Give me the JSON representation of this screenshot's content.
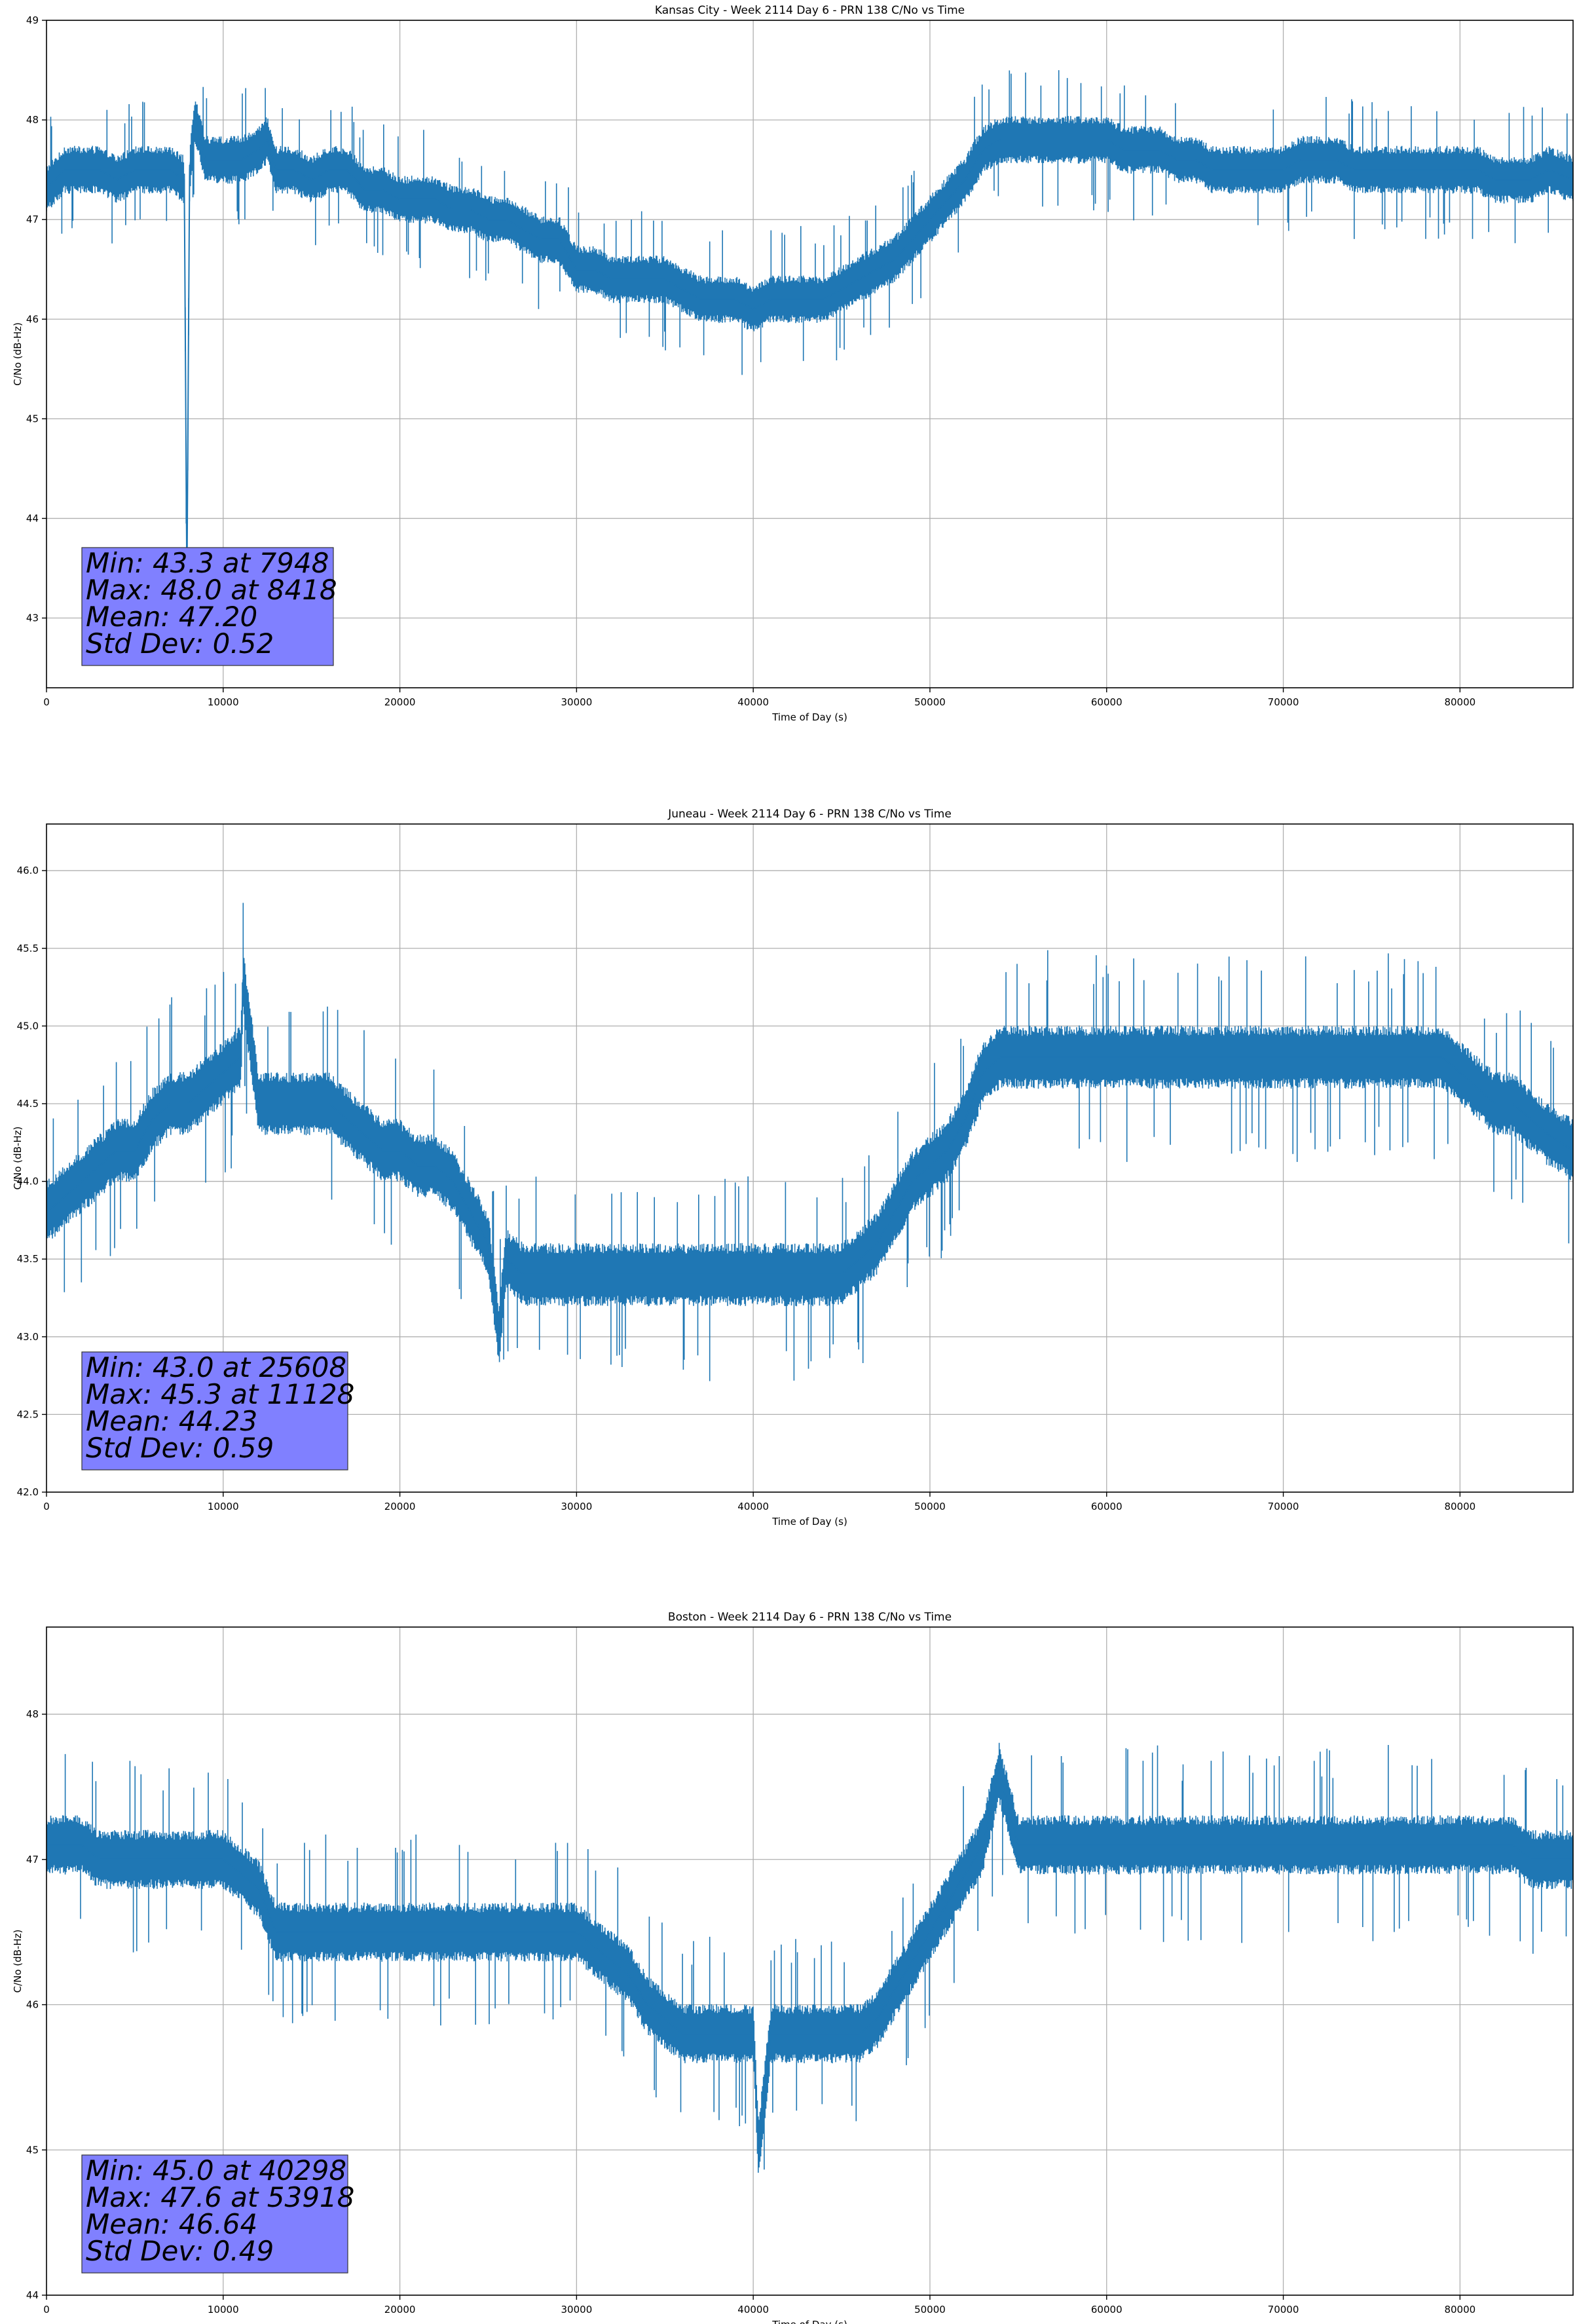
{
  "chart_data": [
    {
      "type": "line",
      "title": "Kansas City - Week 2114 Day 6 - PRN 138 C/No vs Time",
      "xlabel": "Time of Day (s)",
      "ylabel": "C/No (dB-Hz)",
      "xlim": [
        0,
        86400
      ],
      "ylim": [
        42.3,
        49.0
      ],
      "xticks": [
        0,
        10000,
        20000,
        30000,
        40000,
        50000,
        60000,
        70000,
        80000
      ],
      "yticks": [
        43,
        44,
        45,
        46,
        47,
        48,
        49
      ],
      "ytick_decimals": 0,
      "grid": true,
      "series_color": "#1f77b4",
      "series": [
        {
          "x": [
            0,
            1000,
            2000,
            3000,
            4000,
            5000,
            6000,
            7000,
            7800,
            7948,
            8100,
            8418,
            9000,
            10000,
            11000,
            12000,
            12500,
            13000,
            14000,
            15000,
            16000,
            17000,
            18000,
            19000,
            20000,
            21000,
            22000,
            23000,
            24000,
            25000,
            26000,
            27000,
            28000,
            29000,
            30000,
            31000,
            32000,
            33000,
            34000,
            35000,
            36000,
            37000,
            38000,
            39000,
            40000,
            41000,
            42000,
            43000,
            44000,
            45000,
            46000,
            47000,
            48000,
            49000,
            50000,
            51000,
            52000,
            53000,
            54000,
            55000,
            56000,
            57000,
            58000,
            59000,
            60000,
            61000,
            62000,
            63000,
            64000,
            65000,
            66000,
            67000,
            68000,
            69000,
            70000,
            71000,
            72000,
            73000,
            74000,
            75000,
            76000,
            77000,
            78000,
            79000,
            80000,
            81000,
            82000,
            83000,
            84000,
            85000,
            86400
          ],
          "y": [
            47.3,
            47.5,
            47.5,
            47.5,
            47.4,
            47.5,
            47.5,
            47.5,
            47.4,
            43.3,
            47.5,
            48.0,
            47.6,
            47.6,
            47.6,
            47.7,
            47.8,
            47.5,
            47.5,
            47.4,
            47.5,
            47.5,
            47.3,
            47.3,
            47.2,
            47.2,
            47.2,
            47.1,
            47.1,
            47.0,
            47.0,
            46.9,
            46.8,
            46.8,
            46.5,
            46.5,
            46.4,
            46.4,
            46.4,
            46.4,
            46.3,
            46.2,
            46.2,
            46.2,
            46.1,
            46.2,
            46.2,
            46.2,
            46.2,
            46.3,
            46.4,
            46.5,
            46.6,
            46.8,
            47.0,
            47.2,
            47.4,
            47.7,
            47.8,
            47.8,
            47.8,
            47.8,
            47.8,
            47.8,
            47.8,
            47.7,
            47.7,
            47.7,
            47.6,
            47.6,
            47.5,
            47.5,
            47.5,
            47.5,
            47.5,
            47.6,
            47.6,
            47.6,
            47.5,
            47.5,
            47.5,
            47.5,
            47.5,
            47.5,
            47.5,
            47.5,
            47.4,
            47.4,
            47.4,
            47.5,
            47.4
          ]
        }
      ],
      "band_halfwidth": 0.2,
      "annotation": {
        "lines": [
          "Min: 43.3 at 7948",
          "Max: 48.0 at 8418",
          "Mean: 47.20",
          "Std Dev: 0.52"
        ],
        "box_color": "#8080ff"
      }
    },
    {
      "type": "line",
      "title": "Juneau - Week 2114 Day 6 - PRN 138 C/No vs Time",
      "xlabel": "Time of Day (s)",
      "ylabel": "C/No (dB-Hz)",
      "xlim": [
        0,
        86400
      ],
      "ylim": [
        42.0,
        46.3
      ],
      "xticks": [
        0,
        10000,
        20000,
        30000,
        40000,
        50000,
        60000,
        70000,
        80000
      ],
      "yticks": [
        42.0,
        42.5,
        43.0,
        43.5,
        44.0,
        44.5,
        45.0,
        45.5,
        46.0
      ],
      "ytick_decimals": 1,
      "grid": true,
      "series_color": "#1f77b4",
      "series": [
        {
          "x": [
            0,
            1000,
            2000,
            3000,
            4000,
            5000,
            6000,
            7000,
            8000,
            9000,
            10000,
            11000,
            11128,
            12000,
            13000,
            14000,
            15000,
            16000,
            17000,
            18000,
            19000,
            20000,
            21000,
            22000,
            23000,
            24000,
            25000,
            25608,
            26000,
            27000,
            28000,
            29000,
            30000,
            31000,
            32000,
            33000,
            34000,
            35000,
            36000,
            37000,
            38000,
            39000,
            40000,
            41000,
            42000,
            43000,
            44000,
            45000,
            46000,
            47000,
            48000,
            49000,
            50000,
            51000,
            52000,
            53000,
            54000,
            55000,
            56000,
            57000,
            58000,
            59000,
            60000,
            61000,
            62000,
            63000,
            64000,
            65000,
            66000,
            67000,
            68000,
            69000,
            70000,
            71000,
            72000,
            73000,
            74000,
            75000,
            76000,
            77000,
            78000,
            79000,
            80000,
            81000,
            82000,
            83000,
            84000,
            85000,
            86400
          ],
          "y": [
            43.8,
            43.9,
            44.0,
            44.1,
            44.2,
            44.2,
            44.4,
            44.5,
            44.5,
            44.6,
            44.7,
            44.8,
            45.3,
            44.5,
            44.5,
            44.5,
            44.5,
            44.5,
            44.4,
            44.3,
            44.2,
            44.2,
            44.1,
            44.1,
            44.0,
            43.8,
            43.6,
            43.0,
            43.5,
            43.4,
            43.4,
            43.4,
            43.4,
            43.4,
            43.4,
            43.4,
            43.4,
            43.4,
            43.4,
            43.4,
            43.4,
            43.4,
            43.4,
            43.4,
            43.4,
            43.4,
            43.4,
            43.4,
            43.5,
            43.6,
            43.8,
            44.0,
            44.1,
            44.2,
            44.4,
            44.7,
            44.8,
            44.8,
            44.8,
            44.8,
            44.8,
            44.8,
            44.8,
            44.8,
            44.8,
            44.8,
            44.8,
            44.8,
            44.8,
            44.8,
            44.8,
            44.8,
            44.8,
            44.8,
            44.8,
            44.8,
            44.8,
            44.8,
            44.8,
            44.8,
            44.8,
            44.8,
            44.7,
            44.6,
            44.5,
            44.5,
            44.4,
            44.3,
            44.2
          ]
        }
      ],
      "band_halfwidth": 0.17,
      "annotation": {
        "lines": [
          "Min: 43.0 at 25608",
          "Max: 45.3 at 11128",
          "Mean: 44.23",
          "Std Dev: 0.59"
        ],
        "box_color": "#8080ff"
      }
    },
    {
      "type": "line",
      "title": "Boston - Week 2114 Day 6 - PRN 138 C/No vs Time",
      "xlabel": "Time of Day (s)",
      "ylabel": "C/No (dB-Hz)",
      "xlim": [
        0,
        86400
      ],
      "ylim": [
        44.0,
        48.6
      ],
      "xticks": [
        0,
        10000,
        20000,
        30000,
        40000,
        50000,
        60000,
        70000,
        80000
      ],
      "yticks": [
        44,
        45,
        46,
        47,
        48
      ],
      "ytick_decimals": 0,
      "grid": true,
      "series_color": "#1f77b4",
      "series": [
        {
          "x": [
            0,
            1000,
            2000,
            3000,
            4000,
            5000,
            6000,
            7000,
            8000,
            9000,
            10000,
            11000,
            12000,
            13000,
            14000,
            15000,
            16000,
            17000,
            18000,
            19000,
            20000,
            21000,
            22000,
            23000,
            24000,
            25000,
            26000,
            27000,
            28000,
            29000,
            30000,
            31000,
            32000,
            33000,
            34000,
            35000,
            36000,
            37000,
            38000,
            39000,
            40000,
            40298,
            41000,
            42000,
            43000,
            44000,
            45000,
            46000,
            47000,
            48000,
            49000,
            50000,
            51000,
            52000,
            53000,
            53918,
            55000,
            56000,
            57000,
            58000,
            59000,
            60000,
            61000,
            62000,
            63000,
            64000,
            65000,
            66000,
            67000,
            68000,
            69000,
            70000,
            71000,
            72000,
            73000,
            74000,
            75000,
            76000,
            77000,
            78000,
            79000,
            80000,
            81000,
            82000,
            83000,
            84000,
            85000,
            86400
          ],
          "y": [
            47.1,
            47.1,
            47.1,
            47.0,
            47.0,
            47.0,
            47.0,
            47.0,
            47.0,
            47.0,
            47.0,
            46.9,
            46.8,
            46.5,
            46.5,
            46.5,
            46.5,
            46.5,
            46.5,
            46.5,
            46.5,
            46.5,
            46.5,
            46.5,
            46.5,
            46.5,
            46.5,
            46.5,
            46.5,
            46.5,
            46.5,
            46.4,
            46.3,
            46.2,
            46.0,
            45.9,
            45.8,
            45.8,
            45.8,
            45.8,
            45.8,
            45.0,
            45.8,
            45.8,
            45.8,
            45.8,
            45.8,
            45.8,
            45.9,
            46.1,
            46.3,
            46.5,
            46.7,
            46.9,
            47.1,
            47.6,
            47.1,
            47.1,
            47.1,
            47.1,
            47.1,
            47.1,
            47.1,
            47.1,
            47.1,
            47.1,
            47.1,
            47.1,
            47.1,
            47.1,
            47.1,
            47.1,
            47.1,
            47.1,
            47.1,
            47.1,
            47.1,
            47.1,
            47.1,
            47.1,
            47.1,
            47.1,
            47.1,
            47.1,
            47.1,
            47.0,
            47.0,
            47.0
          ]
        }
      ],
      "band_halfwidth": 0.17,
      "annotation": {
        "lines": [
          "Min: 45.0 at 40298",
          "Max: 47.6 at 53918",
          "Mean: 46.64",
          "Std Dev: 0.49"
        ],
        "box_color": "#8080ff"
      }
    }
  ]
}
